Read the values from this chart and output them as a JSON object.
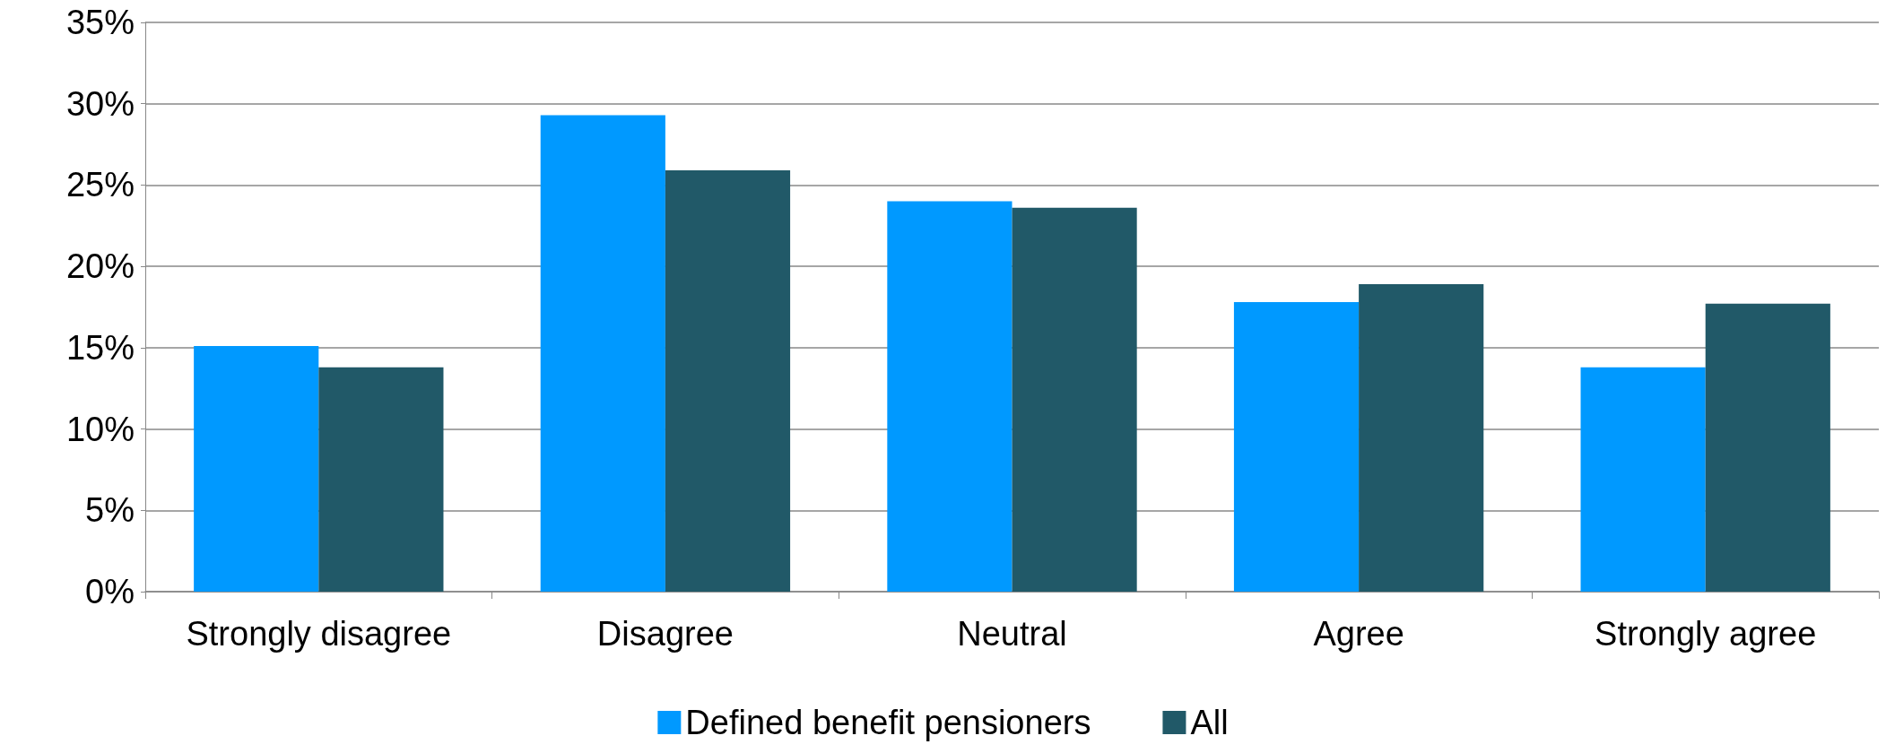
{
  "chart_data": {
    "type": "bar",
    "categories": [
      "Strongly disagree",
      "Disagree",
      "Neutral",
      "Agree",
      "Strongly agree"
    ],
    "series": [
      {
        "name": "Defined benefit pensioners",
        "color": "#0099ff",
        "values": [
          15.1,
          29.3,
          24.0,
          17.8,
          13.8
        ]
      },
      {
        "name": "All",
        "color": "#215968",
        "values": [
          13.8,
          25.9,
          23.6,
          18.9,
          17.7
        ]
      }
    ],
    "ylim": [
      0,
      35
    ],
    "yticks": [
      {
        "value": 0,
        "label": "0%"
      },
      {
        "value": 5,
        "label": "5%"
      },
      {
        "value": 10,
        "label": "10%"
      },
      {
        "value": 15,
        "label": "15%"
      },
      {
        "value": 20,
        "label": "20%"
      },
      {
        "value": 25,
        "label": "25%"
      },
      {
        "value": 30,
        "label": "30%"
      },
      {
        "value": 35,
        "label": "35%"
      }
    ],
    "grid": "y",
    "legend": "bottom"
  }
}
